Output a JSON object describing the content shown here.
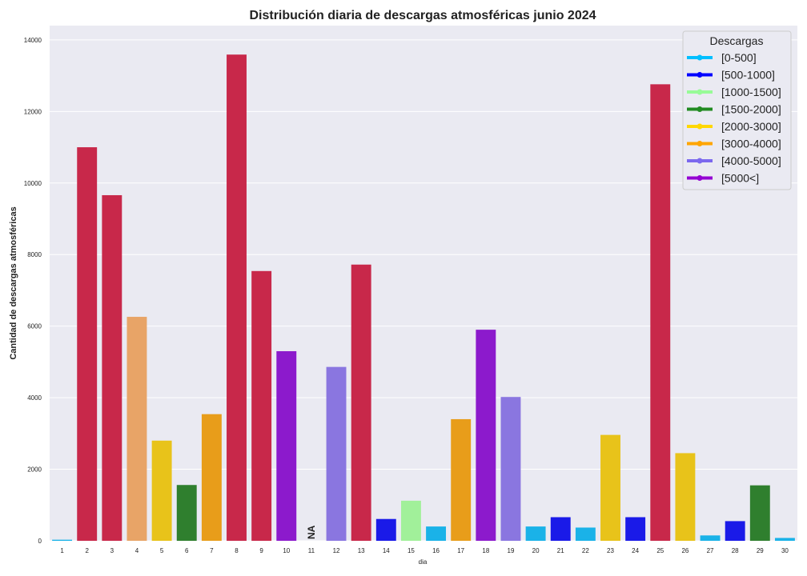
{
  "chart_data": {
    "type": "bar",
    "title": "Distribución diaria de descargas atmosféricas junio 2024",
    "xlabel": "dia",
    "ylabel": "Cantidad de descargas atmosféricas",
    "ylim": [
      0,
      14400
    ],
    "yticks": [
      0,
      2000,
      4000,
      6000,
      8000,
      10000,
      12000,
      14000
    ],
    "grid": true,
    "categories": [
      "1",
      "2",
      "3",
      "4",
      "5",
      "6",
      "7",
      "8",
      "9",
      "10",
      "11",
      "12",
      "13",
      "14",
      "15",
      "16",
      "17",
      "18",
      "19",
      "20",
      "21",
      "22",
      "23",
      "24",
      "25",
      "26",
      "27",
      "28",
      "29",
      "30"
    ],
    "values": [
      30,
      11000,
      9660,
      6260,
      2800,
      1560,
      3540,
      13590,
      7540,
      5300,
      null,
      4860,
      7720,
      610,
      1120,
      400,
      3400,
      5900,
      4020,
      400,
      660,
      370,
      2960,
      660,
      12760,
      2450,
      150,
      550,
      1550,
      80
    ],
    "bar_colors": [
      "#1ab2e8",
      "#c8284a",
      "#c8284a",
      "#e8a467",
      "#e8c31a",
      "#2f7f2e",
      "#e89d1a",
      "#c8284a",
      "#c8284a",
      "#8c1acc",
      "#ffffff",
      "#8a76e0",
      "#c8284a",
      "#1a1ae8",
      "#a1f09a",
      "#1ab2e8",
      "#e89d1a",
      "#8c1acc",
      "#8a76e0",
      "#1ab2e8",
      "#1a1ae8",
      "#1ab2e8",
      "#e8c31a",
      "#1a1ae8",
      "#c8284a",
      "#e8c31a",
      "#1ab2e8",
      "#1a1ae8",
      "#2f7f2e",
      "#1ab2e8"
    ],
    "na_label": "NA",
    "legend": {
      "title": "Descargas",
      "position": "top-right",
      "entries": [
        {
          "label": "[0-500]",
          "color": "#00bfff"
        },
        {
          "label": "[500-1000]",
          "color": "#0000ff"
        },
        {
          "label": "[1000-1500]",
          "color": "#98fb98"
        },
        {
          "label": "[1500-2000]",
          "color": "#228b22"
        },
        {
          "label": "[2000-3000]",
          "color": "#ffd700"
        },
        {
          "label": "[3000-4000]",
          "color": "#ffa500"
        },
        {
          "label": "[4000-5000]",
          "color": "#7b68ee"
        },
        {
          "label": "[5000<]",
          "color": "#9400d3"
        }
      ]
    },
    "plot_background": "#eaeaf2",
    "grid_color": "#ffffff"
  }
}
